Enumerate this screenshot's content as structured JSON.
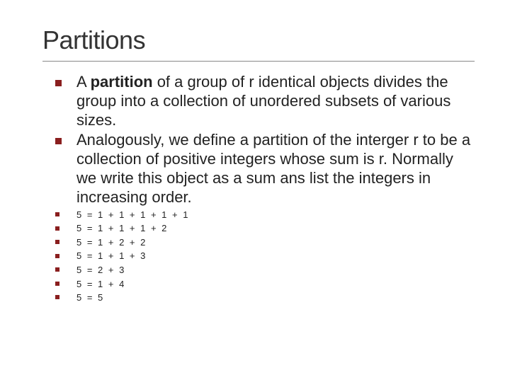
{
  "title": "Partitions",
  "main_bullets": [
    {
      "prefix": "A ",
      "bold": "partition",
      "rest": " of a group of r identical objects divides the group into a collection of unordered subsets of various sizes."
    },
    {
      "prefix": "",
      "bold": "",
      "rest": "Analogously, we define a partition of the interger r to be a collection of positive integers whose sum is r. Normally we write this object as a sum ans list the integers in increasing order."
    }
  ],
  "equations": [
    "5 = 1 + 1 + 1 + 1 + 1",
    "5 = 1 + 1 + 1 + 2",
    "5 = 1 + 2 + 2",
    "5 = 1 + 1 + 3",
    "5 = 2  + 3",
    "5 = 1 + 4",
    "5 = 5"
  ],
  "colors": {
    "bullet": "#8a1f1f",
    "text": "#222222",
    "divider": "#888888",
    "background": "#ffffff"
  },
  "fontsizes": {
    "title": 36,
    "main": 22,
    "eq": 13
  }
}
